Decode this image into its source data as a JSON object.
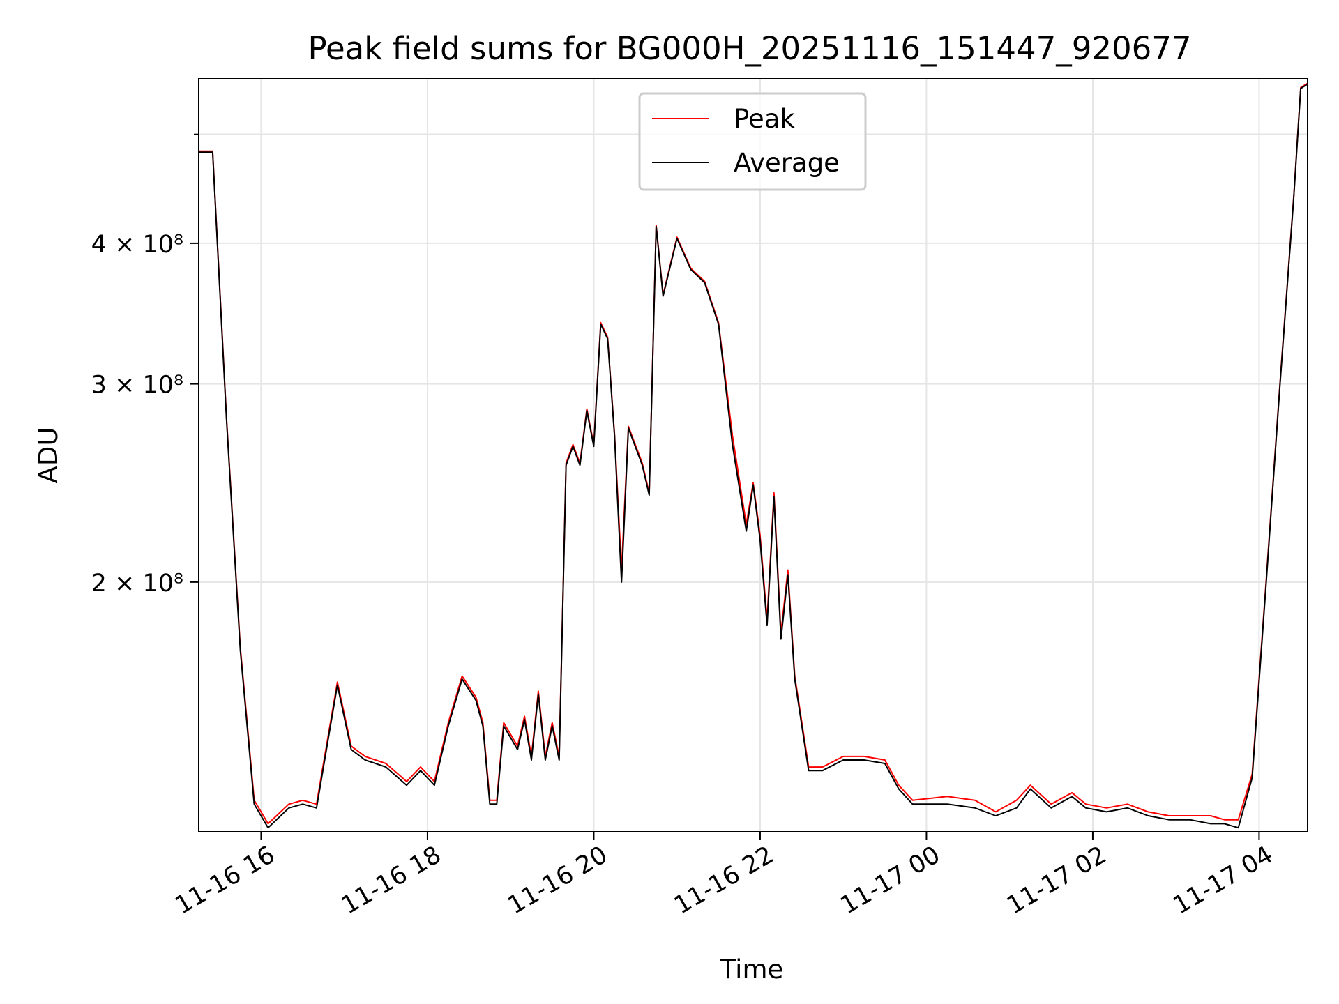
{
  "chart_data": {
    "type": "line",
    "title": "Peak field sums for BG000H_20251116_151447_920677",
    "xlabel": "Time",
    "ylabel": "ADU",
    "x_range": [
      "2025-11-16T15:15",
      "2025-11-17T04:35"
    ],
    "y_scale": "log",
    "ylim": [
      120000000,
      560000000
    ],
    "grid": true,
    "legend": {
      "position": "top-center"
    },
    "x_ticks": [
      {
        "t": "2025-11-16T16:00",
        "label": "11-16 16"
      },
      {
        "t": "2025-11-16T18:00",
        "label": "11-16 18"
      },
      {
        "t": "2025-11-16T20:00",
        "label": "11-16 20"
      },
      {
        "t": "2025-11-16T22:00",
        "label": "11-16 22"
      },
      {
        "t": "2025-11-17T00:00",
        "label": "11-17 00"
      },
      {
        "t": "2025-11-17T02:00",
        "label": "11-17 02"
      },
      {
        "t": "2025-11-17T04:00",
        "label": "11-17 04"
      }
    ],
    "y_ticks": [
      {
        "v": 200000000,
        "label": "2 × 10⁸"
      },
      {
        "v": 300000000,
        "label": "3 × 10⁸"
      },
      {
        "v": 400000000,
        "label": "4 × 10⁸"
      }
    ],
    "y_minor_ticks": [
      500000000
    ],
    "series": [
      {
        "name": "Peak",
        "color": "#ff0000",
        "x": [
          "2025-11-16T15:15",
          "2025-11-16T15:25",
          "2025-11-16T15:35",
          "2025-11-16T15:45",
          "2025-11-16T15:55",
          "2025-11-16T16:05",
          "2025-11-16T16:20",
          "2025-11-16T16:30",
          "2025-11-16T16:40",
          "2025-11-16T16:50",
          "2025-11-16T16:55",
          "2025-11-16T17:05",
          "2025-11-16T17:15",
          "2025-11-16T17:30",
          "2025-11-16T17:45",
          "2025-11-16T17:55",
          "2025-11-16T18:05",
          "2025-11-16T18:15",
          "2025-11-16T18:25",
          "2025-11-16T18:35",
          "2025-11-16T18:40",
          "2025-11-16T18:45",
          "2025-11-16T18:50",
          "2025-11-16T18:55",
          "2025-11-16T19:05",
          "2025-11-16T19:10",
          "2025-11-16T19:15",
          "2025-11-16T19:20",
          "2025-11-16T19:25",
          "2025-11-16T19:30",
          "2025-11-16T19:35",
          "2025-11-16T19:40",
          "2025-11-16T19:45",
          "2025-11-16T19:50",
          "2025-11-16T19:55",
          "2025-11-16T20:00",
          "2025-11-16T20:05",
          "2025-11-16T20:10",
          "2025-11-16T20:15",
          "2025-11-16T20:20",
          "2025-11-16T20:25",
          "2025-11-16T20:35",
          "2025-11-16T20:40",
          "2025-11-16T20:45",
          "2025-11-16T20:50",
          "2025-11-16T21:00",
          "2025-11-16T21:10",
          "2025-11-16T21:20",
          "2025-11-16T21:30",
          "2025-11-16T21:40",
          "2025-11-16T21:50",
          "2025-11-16T21:55",
          "2025-11-16T22:00",
          "2025-11-16T22:05",
          "2025-11-16T22:10",
          "2025-11-16T22:15",
          "2025-11-16T22:20",
          "2025-11-16T22:25",
          "2025-11-16T22:35",
          "2025-11-16T22:45",
          "2025-11-16T23:00",
          "2025-11-16T23:15",
          "2025-11-16T23:30",
          "2025-11-16T23:40",
          "2025-11-16T23:50",
          "2025-11-17T00:15",
          "2025-11-17T00:35",
          "2025-11-17T00:50",
          "2025-11-17T01:05",
          "2025-11-17T01:15",
          "2025-11-17T01:30",
          "2025-11-17T01:45",
          "2025-11-17T01:55",
          "2025-11-17T02:10",
          "2025-11-17T02:25",
          "2025-11-17T02:40",
          "2025-11-17T02:55",
          "2025-11-17T03:10",
          "2025-11-17T03:25",
          "2025-11-17T03:35",
          "2025-11-17T03:45",
          "2025-11-17T03:55",
          "2025-11-17T04:05",
          "2025-11-17T04:15",
          "2025-11-17T04:25",
          "2025-11-17T04:30",
          "2025-11-17T04:35"
        ],
        "y": [
          483000000,
          483000000,
          280000000,
          175000000,
          128000000,
          122000000,
          127000000,
          128000000,
          127000000,
          150000000,
          163000000,
          143000000,
          140000000,
          138000000,
          133000000,
          137000000,
          133000000,
          150000000,
          165000000,
          158000000,
          150000000,
          128000000,
          128000000,
          150000000,
          143000000,
          152000000,
          140000000,
          160000000,
          140000000,
          150000000,
          140000000,
          255000000,
          265000000,
          255000000,
          285000000,
          265000000,
          340000000,
          330000000,
          270000000,
          205000000,
          275000000,
          255000000,
          240000000,
          415000000,
          360000000,
          405000000,
          380000000,
          370000000,
          340000000,
          270000000,
          225000000,
          245000000,
          220000000,
          185000000,
          240000000,
          180000000,
          205000000,
          165000000,
          137000000,
          137000000,
          140000000,
          140000000,
          139000000,
          132000000,
          128000000,
          129000000,
          128000000,
          125000000,
          128000000,
          132000000,
          127000000,
          130000000,
          127000000,
          126000000,
          127000000,
          125000000,
          124000000,
          124000000,
          124000000,
          123000000,
          123000000,
          135000000,
          200000000,
          300000000,
          440000000,
          550000000,
          555000000
        ]
      },
      {
        "name": "Average",
        "color": "#000000",
        "x": [
          "2025-11-16T15:15",
          "2025-11-16T15:25",
          "2025-11-16T15:35",
          "2025-11-16T15:45",
          "2025-11-16T15:55",
          "2025-11-16T16:05",
          "2025-11-16T16:20",
          "2025-11-16T16:30",
          "2025-11-16T16:40",
          "2025-11-16T16:50",
          "2025-11-16T16:55",
          "2025-11-16T17:05",
          "2025-11-16T17:15",
          "2025-11-16T17:30",
          "2025-11-16T17:45",
          "2025-11-16T17:55",
          "2025-11-16T18:05",
          "2025-11-16T18:15",
          "2025-11-16T18:25",
          "2025-11-16T18:35",
          "2025-11-16T18:40",
          "2025-11-16T18:45",
          "2025-11-16T18:50",
          "2025-11-16T18:55",
          "2025-11-16T19:05",
          "2025-11-16T19:10",
          "2025-11-16T19:15",
          "2025-11-16T19:20",
          "2025-11-16T19:25",
          "2025-11-16T19:30",
          "2025-11-16T19:35",
          "2025-11-16T19:40",
          "2025-11-16T19:45",
          "2025-11-16T19:50",
          "2025-11-16T19:55",
          "2025-11-16T20:00",
          "2025-11-16T20:05",
          "2025-11-16T20:10",
          "2025-11-16T20:15",
          "2025-11-16T20:20",
          "2025-11-16T20:25",
          "2025-11-16T20:35",
          "2025-11-16T20:40",
          "2025-11-16T20:45",
          "2025-11-16T20:50",
          "2025-11-16T21:00",
          "2025-11-16T21:10",
          "2025-11-16T21:20",
          "2025-11-16T21:30",
          "2025-11-16T21:40",
          "2025-11-16T21:50",
          "2025-11-16T21:55",
          "2025-11-16T22:00",
          "2025-11-16T22:05",
          "2025-11-16T22:10",
          "2025-11-16T22:15",
          "2025-11-16T22:20",
          "2025-11-16T22:25",
          "2025-11-16T22:35",
          "2025-11-16T22:45",
          "2025-11-16T23:00",
          "2025-11-16T23:15",
          "2025-11-16T23:30",
          "2025-11-16T23:40",
          "2025-11-16T23:50",
          "2025-11-17T00:15",
          "2025-11-17T00:35",
          "2025-11-17T00:50",
          "2025-11-17T01:05",
          "2025-11-17T01:15",
          "2025-11-17T01:30",
          "2025-11-17T01:45",
          "2025-11-17T01:55",
          "2025-11-17T02:10",
          "2025-11-17T02:25",
          "2025-11-17T02:40",
          "2025-11-17T02:55",
          "2025-11-17T03:10",
          "2025-11-17T03:25",
          "2025-11-17T03:35",
          "2025-11-17T03:45",
          "2025-11-17T03:55",
          "2025-11-17T04:05",
          "2025-11-17T04:15",
          "2025-11-17T04:25",
          "2025-11-17T04:30",
          "2025-11-17T04:35"
        ],
        "y": [
          482000000,
          482000000,
          279000000,
          174000000,
          127000000,
          121000000,
          126000000,
          127000000,
          126000000,
          149000000,
          162000000,
          142000000,
          139000000,
          137000000,
          132000000,
          136000000,
          132000000,
          149000000,
          164000000,
          157000000,
          149000000,
          127000000,
          127000000,
          149000000,
          142000000,
          151000000,
          139000000,
          159000000,
          139000000,
          149000000,
          139000000,
          254000000,
          264000000,
          254000000,
          284000000,
          264000000,
          339000000,
          329000000,
          269000000,
          200000000,
          274000000,
          254000000,
          239000000,
          414000000,
          359000000,
          404000000,
          379000000,
          369000000,
          339000000,
          265000000,
          222000000,
          244000000,
          218000000,
          183000000,
          238000000,
          178000000,
          203000000,
          164000000,
          136000000,
          136000000,
          139000000,
          139000000,
          138000000,
          131000000,
          127000000,
          127000000,
          126000000,
          124000000,
          126000000,
          131000000,
          126000000,
          129000000,
          126000000,
          125000000,
          126000000,
          124000000,
          123000000,
          123000000,
          122000000,
          122000000,
          121000000,
          134000000,
          199000000,
          299000000,
          439000000,
          549000000,
          554000000
        ]
      }
    ]
  }
}
